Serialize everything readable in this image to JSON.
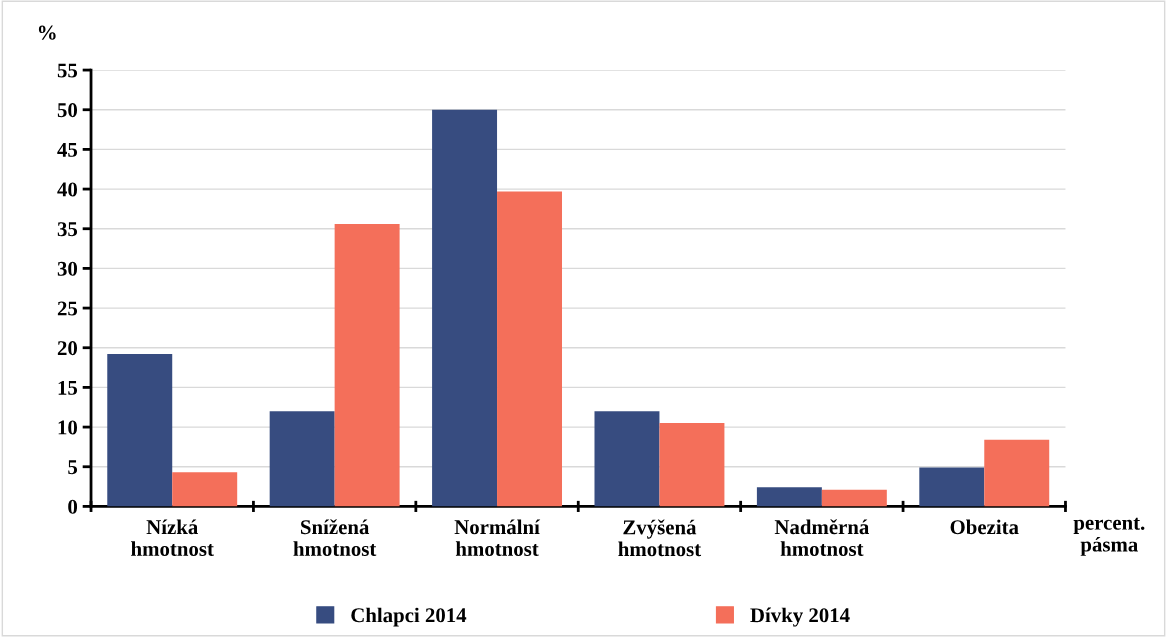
{
  "chart_data": {
    "type": "bar",
    "ylabel": "%",
    "xlabel": "percent.\npásma",
    "categories": [
      "Nízká\nhmotnost",
      "Snížená\nhmotnost",
      "Normální\nhmotnost",
      "Zvýšená\nhmotnost",
      "Nadměrná\nhmotnost",
      "Obezita"
    ],
    "series": [
      {
        "name": "Chlapci 2014",
        "color": "#374c80",
        "values": [
          19.2,
          12.0,
          50.0,
          12.0,
          2.4,
          4.9
        ]
      },
      {
        "name": "Dívky 2014",
        "color": "#f46f5a",
        "values": [
          4.3,
          35.6,
          39.7,
          10.5,
          2.1,
          8.4
        ]
      }
    ],
    "ylim": [
      0,
      55
    ],
    "yticks": [
      0,
      5,
      10,
      15,
      20,
      25,
      30,
      35,
      40,
      45,
      50,
      55
    ],
    "grid": "y",
    "legend": "bottom"
  }
}
